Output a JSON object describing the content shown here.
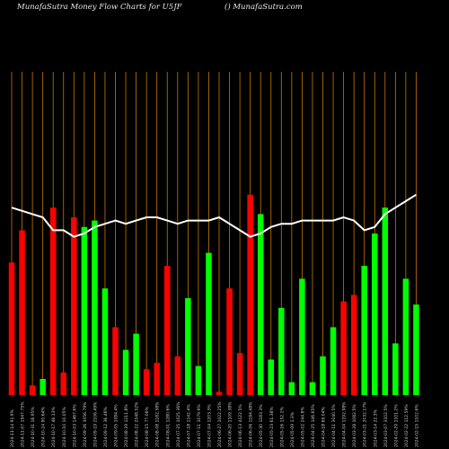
{
  "header": {
    "title": "MunafaSutra  Money Flow  Charts for U5JF",
    "watermark": "() MunafaSutra.com"
  },
  "chart_data": {
    "type": "bar",
    "title": "MunafaSutra  Money Flow  Charts for U5JF",
    "ylim": [
      0,
      100
    ],
    "grid": true,
    "colors": {
      "up": "#00ff00",
      "down": "#ff0000",
      "line": "#ffffff",
      "grid": "#c87800",
      "background": "#000000"
    },
    "categories": [
      "2024-11-14 91.9%",
      "2024-11-07 1947.75%",
      "2024-10-31 16.95%",
      "2024-10-24 90.64%",
      "2024-10-17 46.13%",
      "2024-10-10 10.05%",
      "2024-10-03 1467.6%",
      "2024-09-26 3056.79%",
      "2024-09-19 2106.49%",
      "2024-09-12 36.46%",
      "2024-09-05 1084.4%",
      "2024-08-29 1211.8%",
      "2024-08-22 2048.52%",
      "2024-08-15 77.06%",
      "2024-08-08 1182.38%",
      "2024-08-01 1280.6%",
      "2024-07-25 1025.36%",
      "2024-07-18 1142.4%",
      "2024-07-11 1079.9%",
      "2024-07-04 1203.3%",
      "2024-06-27 1022.25%",
      "2024-06-20 1109.38%",
      "2024-06-13 4122.5%",
      "2024-06-06 1184.48%",
      "2024-05-30 1183.3%",
      "2024-05-23 61.38%",
      "2024-05-16 152.1%",
      "2024-05-09 1.3%",
      "2024-05-02 244.8%",
      "2024-04-25 146.65%",
      "2024-04-18 69.04%",
      "2024-04-11 3040.5%",
      "2024-04-04 1192.98%",
      "2024-03-28 1082.5%",
      "2024-03-21 2032.17%",
      "2024-03-14 22.3%",
      "2024-03-07 3102.5%",
      "2024-02-29 1101.2%",
      "2024-02-22 112.59%",
      "2024-02-15 1102.6%"
    ],
    "directions": [
      "down",
      "down",
      "down",
      "up",
      "down",
      "down",
      "down",
      "up",
      "up",
      "up",
      "down",
      "up",
      "up",
      "down",
      "down",
      "down",
      "down",
      "up",
      "up",
      "up",
      "down",
      "down",
      "down",
      "down",
      "up",
      "up",
      "up",
      "up",
      "up",
      "up",
      "up",
      "up",
      "down",
      "down",
      "up",
      "up",
      "up",
      "up",
      "up",
      "up"
    ],
    "values": [
      41,
      51,
      3,
      5,
      58,
      7,
      55,
      52,
      54,
      33,
      21,
      14,
      19,
      8,
      10,
      40,
      12,
      30,
      9,
      44,
      1,
      33,
      13,
      62,
      56,
      11,
      27,
      4,
      36,
      4,
      12,
      21,
      29,
      31,
      40,
      50,
      58,
      16,
      36,
      28
    ],
    "line_values": [
      58,
      57,
      56,
      55,
      51,
      51,
      49,
      50,
      52,
      53,
      54,
      53,
      54,
      55,
      55,
      54,
      53,
      54,
      54,
      54,
      55,
      53,
      51,
      49,
      50,
      52,
      53,
      53,
      54,
      54,
      54,
      54,
      55,
      54,
      51,
      52,
      56,
      58,
      60,
      62
    ]
  }
}
